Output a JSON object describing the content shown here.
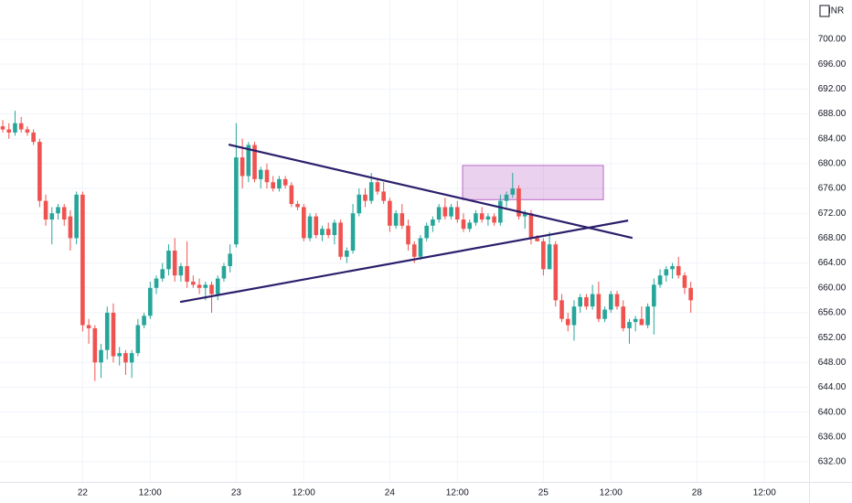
{
  "chart_data": {
    "type": "candlestick",
    "currency": "INR",
    "up_color": "#26a69a",
    "down_color": "#ef5350",
    "grid": true,
    "x": [
      0,
      1,
      2,
      3,
      4,
      5,
      6,
      7,
      8,
      9,
      10,
      11,
      12,
      13,
      14,
      15,
      16,
      17,
      18,
      19,
      20,
      21,
      22,
      23,
      24,
      25,
      26,
      27,
      28,
      29,
      30,
      31,
      32,
      33,
      34,
      35,
      36,
      37,
      38,
      39,
      40,
      41,
      42,
      43,
      44,
      45,
      46,
      47,
      48,
      49,
      50,
      51,
      52,
      53,
      54,
      55,
      56,
      57,
      58,
      59,
      60,
      61,
      62,
      63,
      64,
      65,
      66,
      67,
      68,
      69,
      70,
      71,
      72,
      73,
      74,
      75,
      76,
      77,
      78,
      79,
      80,
      81,
      82,
      83,
      84,
      85,
      86,
      87,
      88,
      89,
      90,
      91,
      92,
      93,
      94,
      95,
      96,
      97,
      98,
      99,
      100,
      101,
      102,
      103,
      104,
      105,
      106,
      107,
      108,
      109,
      110,
      111,
      112
    ],
    "open": [
      686,
      685.5,
      685,
      686.5,
      685.5,
      685,
      683.5,
      674,
      671,
      672,
      673,
      671.5,
      668,
      675,
      654,
      653.5,
      648,
      650,
      656,
      649,
      649.5,
      648,
      649.5,
      654,
      655.5,
      660,
      661.5,
      663,
      666,
      662,
      663.5,
      661,
      660.5,
      660,
      660.5,
      659,
      661.5,
      663.5,
      667,
      681,
      678,
      683,
      677.5,
      679,
      677,
      676,
      677.5,
      676.5,
      673.5,
      673,
      668,
      671.5,
      668.5,
      669.5,
      668.5,
      670.5,
      665,
      666,
      672,
      675,
      674,
      677,
      675.5,
      674,
      670,
      672,
      670,
      667,
      665,
      668,
      670,
      671,
      673,
      671.5,
      673,
      671,
      669.5,
      670.5,
      672,
      671,
      671.5,
      670.5,
      674,
      675,
      676,
      671.5,
      672,
      668,
      667.5,
      663,
      667,
      658,
      655,
      654,
      657,
      658.5,
      657,
      659,
      655,
      656.5,
      659,
      657,
      653.5,
      654.5,
      655,
      654,
      657,
      660.5,
      662,
      663,
      663.5,
      662,
      660
    ],
    "high": [
      687,
      686.5,
      688.5,
      687.5,
      686,
      685.5,
      684,
      675,
      673,
      673.5,
      673.5,
      672.5,
      675.5,
      675.5,
      655,
      654,
      651,
      657,
      657.5,
      650.5,
      650,
      650,
      655,
      656,
      661,
      662,
      664,
      667,
      668,
      664,
      667.5,
      662,
      661.5,
      661,
      661,
      662,
      664,
      667,
      686.5,
      684,
      683.5,
      683.5,
      679.5,
      680,
      678,
      678,
      678,
      677,
      674,
      673.5,
      672,
      672,
      670,
      670.5,
      671,
      671,
      666.5,
      673.5,
      676,
      676,
      678.5,
      677.5,
      677,
      674.5,
      672.5,
      673.5,
      671,
      667.5,
      668.5,
      670.5,
      671.5,
      673.5,
      674.5,
      673.5,
      674,
      672,
      671,
      672.5,
      673,
      672,
      672,
      675,
      675.5,
      678.5,
      676.5,
      672.5,
      672.5,
      668.5,
      668,
      669,
      667.5,
      659,
      656,
      658,
      659,
      659,
      660.5,
      661,
      657,
      659.5,
      659.5,
      658,
      655,
      655.5,
      657,
      657.5,
      661.5,
      663,
      663.5,
      664,
      665,
      662.5,
      661
    ],
    "low": [
      685,
      684,
      684.5,
      685,
      684.5,
      683,
      673,
      670,
      667,
      671,
      670,
      666,
      667,
      653,
      651,
      645,
      645.5,
      648.5,
      648,
      647.5,
      646,
      645.5,
      649,
      653.5,
      655,
      659,
      661,
      662,
      661,
      661,
      660,
      660,
      659,
      658,
      656,
      658,
      661,
      662.5,
      666.5,
      676,
      677,
      677,
      676,
      676,
      675.5,
      675.5,
      676,
      673,
      672.5,
      667.5,
      667.5,
      668,
      667.5,
      668,
      667,
      664.5,
      664,
      665.5,
      671.5,
      673,
      673.5,
      675,
      673.5,
      669,
      669.5,
      669.5,
      666,
      664,
      664.5,
      667.5,
      669,
      670.5,
      671,
      671,
      670.5,
      669,
      669,
      670,
      670.5,
      670,
      670,
      670,
      673,
      674.5,
      671,
      669.5,
      667,
      667.5,
      662,
      663,
      657,
      654.5,
      653,
      651.5,
      656,
      656.5,
      656.5,
      654.5,
      654.5,
      656,
      656.5,
      653,
      651,
      653,
      654,
      653.5,
      652.5,
      660,
      661,
      661.5,
      661.5,
      659,
      656
    ],
    "close": [
      685.5,
      685,
      686.5,
      685.5,
      685,
      683.5,
      674,
      671,
      672,
      673,
      671,
      668,
      675,
      654,
      653.5,
      648,
      650,
      656,
      649,
      649.5,
      648,
      649.5,
      654,
      655.5,
      660,
      661.5,
      663,
      666,
      662,
      663.5,
      661,
      660.5,
      660,
      660.5,
      659,
      661.5,
      663.5,
      665.5,
      681,
      678,
      683,
      677.5,
      679,
      677,
      676,
      677.5,
      676.5,
      673.5,
      673,
      668,
      671.5,
      668.5,
      669.5,
      668.5,
      670.5,
      665,
      666,
      672,
      675,
      674,
      677,
      675.5,
      674,
      670,
      672,
      670,
      667,
      665,
      668,
      670,
      671,
      673,
      671.5,
      673,
      671,
      669.5,
      670.5,
      672,
      671,
      671.5,
      670.5,
      674,
      675,
      676,
      671.5,
      672,
      668,
      667.5,
      663,
      667,
      658,
      655,
      654,
      657,
      658.5,
      657,
      659,
      655,
      656.5,
      659,
      657,
      653.5,
      654.5,
      655,
      654,
      657,
      660.5,
      662,
      663,
      663.5,
      662,
      660,
      658
    ],
    "xlim": [
      -0.45,
      131.25
    ],
    "xticks": [
      {
        "value": 13,
        "label": "22"
      },
      {
        "value": 24,
        "label": "12:00"
      },
      {
        "value": 38,
        "label": "23"
      },
      {
        "value": 49,
        "label": "12:00"
      },
      {
        "value": 63,
        "label": "24"
      },
      {
        "value": 74,
        "label": "12:00"
      },
      {
        "value": 88,
        "label": "25"
      },
      {
        "value": 99,
        "label": "12:00"
      },
      {
        "value": 113,
        "label": "28"
      },
      {
        "value": 124,
        "label": "12:00"
      }
    ],
    "ylim": [
      628.76,
      706.33
    ],
    "yticks": [
      {
        "value": 632,
        "label": "632.00"
      },
      {
        "value": 636,
        "label": "636.00"
      },
      {
        "value": 640,
        "label": "640.00"
      },
      {
        "value": 644,
        "label": "644.00"
      },
      {
        "value": 648,
        "label": "648.00"
      },
      {
        "value": 652,
        "label": "652.00"
      },
      {
        "value": 656,
        "label": "656.00"
      },
      {
        "value": 660,
        "label": "660.00"
      },
      {
        "value": 664,
        "label": "664.00"
      },
      {
        "value": 668,
        "label": "668.00"
      },
      {
        "value": 672,
        "label": "672.00"
      },
      {
        "value": 676,
        "label": "676.00"
      },
      {
        "value": 680,
        "label": "680.00"
      },
      {
        "value": 684,
        "label": "684.00"
      },
      {
        "value": 688,
        "label": "688.00"
      },
      {
        "value": 692,
        "label": "692.00"
      },
      {
        "value": 696,
        "label": "696.00"
      },
      {
        "value": 700,
        "label": "700.00"
      }
    ],
    "trendlines": [
      {
        "points": [
          [
            36.76,
            683.06
          ],
          [
            102.5,
            668.04
          ]
        ],
        "color": "#2b1f6b"
      },
      {
        "points": [
          [
            28.87,
            657.73
          ],
          [
            101.8,
            670.84
          ]
        ],
        "color": "#2b1f6b"
      }
    ],
    "zone": {
      "x": [
        74.85,
        97.77
      ],
      "y": [
        674.2,
        679.7
      ],
      "color": "#ba68c8"
    }
  }
}
